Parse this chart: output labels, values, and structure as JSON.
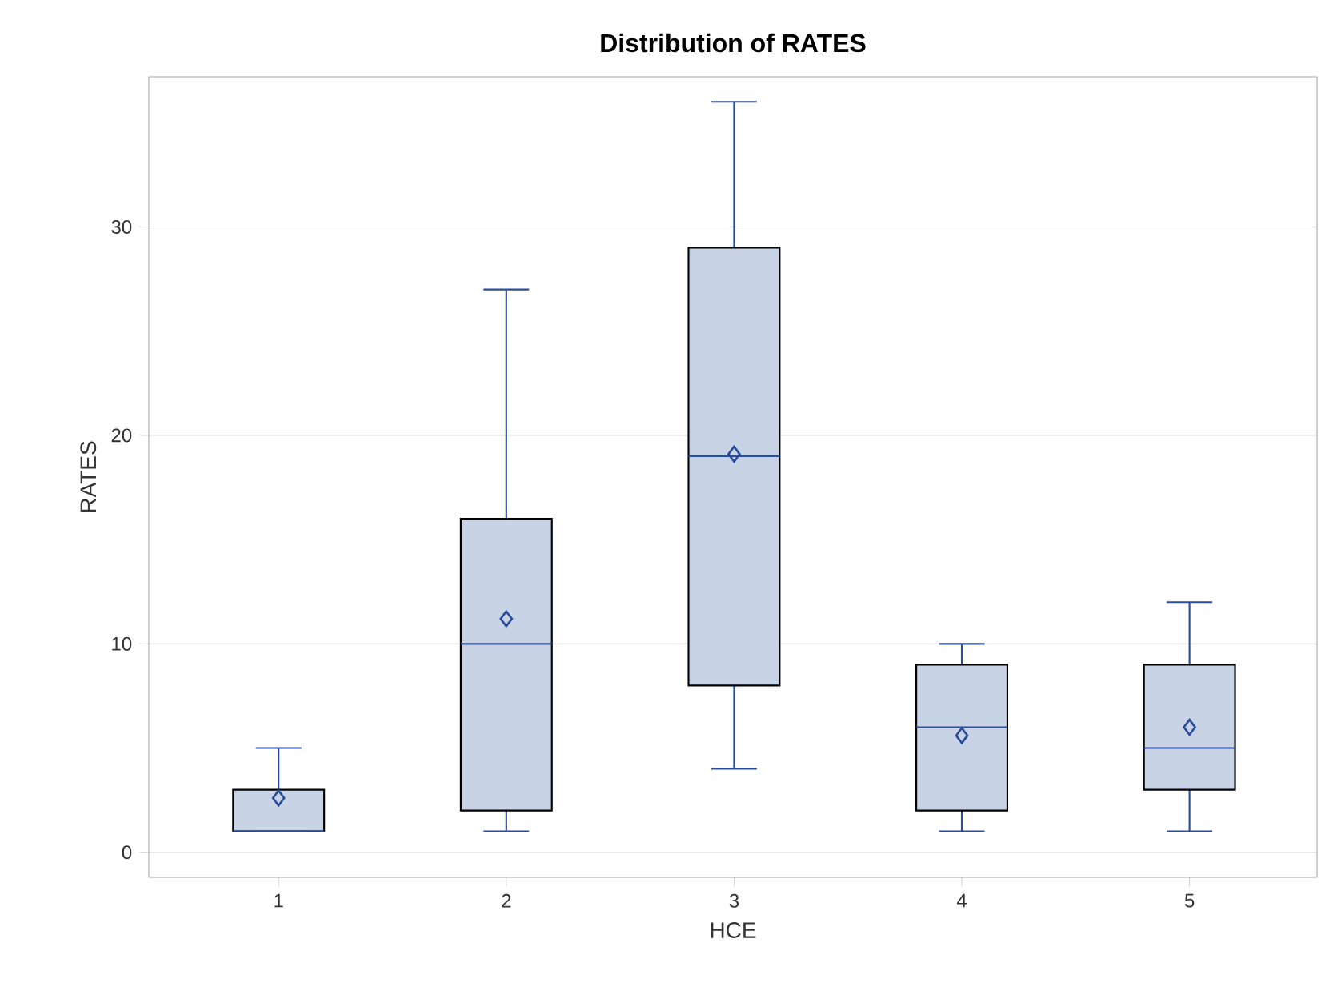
{
  "chart_data": {
    "type": "box",
    "title": "Distribution of RATES",
    "xlabel": "HCE",
    "ylabel": "RATES",
    "categories": [
      "1",
      "2",
      "3",
      "4",
      "5"
    ],
    "boxes": [
      {
        "low": 1,
        "q1": 1,
        "median": 1,
        "q3": 3,
        "high": 5,
        "mean": 2.6
      },
      {
        "low": 1,
        "q1": 2,
        "median": 10,
        "q3": 16,
        "high": 27,
        "mean": 11.2
      },
      {
        "low": 4,
        "q1": 8,
        "median": 19,
        "q3": 29,
        "high": 36,
        "mean": 19.1
      },
      {
        "low": 1,
        "q1": 2,
        "median": 6,
        "q3": 9,
        "high": 10,
        "mean": 5.6
      },
      {
        "low": 1,
        "q1": 3,
        "median": 5,
        "q3": 9,
        "high": 12,
        "mean": 6
      }
    ],
    "color": "#c8d4e6",
    "ylim": [
      -1.2,
      37.2
    ],
    "yticks": [
      0,
      10,
      20,
      30
    ],
    "grid": "y"
  }
}
